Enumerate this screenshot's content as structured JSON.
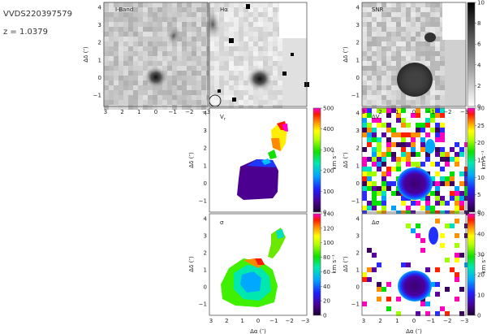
{
  "object": {
    "name": "VVDS220397579",
    "redshift_label": "z = 1.0379"
  },
  "panels": {
    "iband": {
      "label": "I-Band"
    },
    "halpha": {
      "label": "Hα"
    },
    "snr": {
      "label": "SNR"
    },
    "vr": {
      "label": "V",
      "sub": "r"
    },
    "sigma": {
      "label": "σ"
    },
    "dvr": {
      "label": "ΔV",
      "sub": "r"
    },
    "dsigma": {
      "label": "Δσ"
    }
  },
  "axes": {
    "ylabel": "Δδ (″)",
    "xlabel": "Δα (″)",
    "xticks": [
      "3",
      "2",
      "1",
      "0",
      "−1",
      "−2",
      "−3"
    ],
    "yticks": [
      "4",
      "3",
      "2",
      "1",
      "0",
      "−1"
    ],
    "cbar_unit": "km s⁻¹"
  },
  "colorbars": {
    "snr": {
      "ticks": [
        "10",
        "8",
        "6",
        "4",
        "2",
        "0"
      ]
    },
    "vr": {
      "ticks": [
        "500",
        "400",
        "300",
        "200",
        "100",
        "0"
      ]
    },
    "sigma": {
      "ticks": [
        "140",
        "120",
        "100",
        "80",
        "60",
        "40",
        "20",
        "0"
      ]
    },
    "dvr": {
      "ticks": [
        "30",
        "25",
        "20",
        "15",
        "10",
        "5",
        "0"
      ]
    },
    "dsigma": {
      "ticks": [
        "50",
        "40",
        "30",
        "20",
        "10",
        "0"
      ]
    }
  },
  "colors": {
    "rainbow": [
      "#3b005a",
      "#5a00a0",
      "#2b2bff",
      "#00a0ff",
      "#00e0c0",
      "#00e000",
      "#a0ff00",
      "#ffff00",
      "#ff9000",
      "#ff2000",
      "#ff00c0"
    ]
  }
}
